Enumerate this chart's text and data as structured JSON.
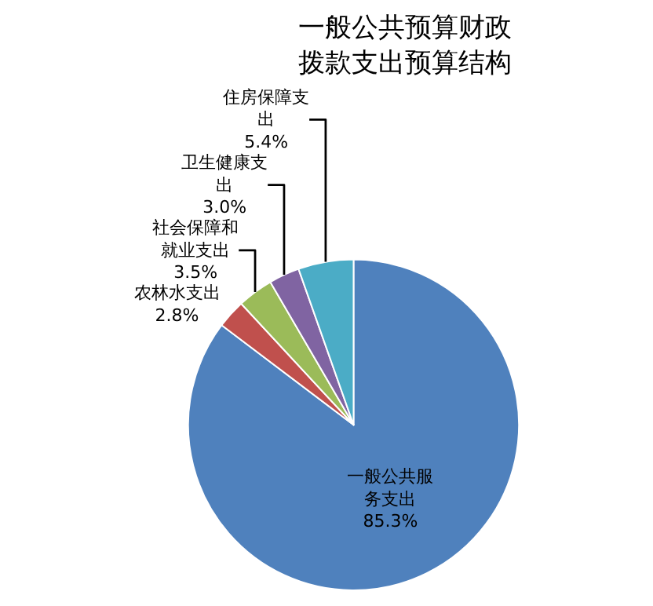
{
  "chart_data": {
    "type": "pie",
    "title": "一般公共预算财政拨款支出预算结构",
    "categories": [
      "一般公共服务支出",
      "农林水支出",
      "社会保障和就业支出",
      "卫生健康支出",
      "住房保障支出"
    ],
    "values": [
      85.3,
      2.8,
      3.5,
      3.0,
      5.4
    ],
    "colors": [
      "#4f81bd",
      "#c0504d",
      "#9bbb59",
      "#8064a2",
      "#4bacc6"
    ],
    "value_labels": [
      "85.3%",
      "2.8%",
      "3.5%",
      "3.0%",
      "5.4%"
    ],
    "legend": false
  }
}
